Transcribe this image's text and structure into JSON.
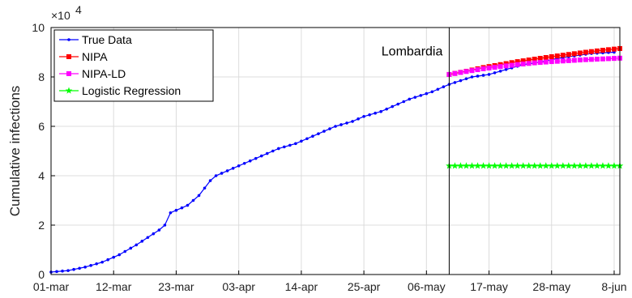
{
  "chart_data": {
    "type": "line",
    "ylabel": "Cumulative infections",
    "y_exponent_label": "×10",
    "y_exponent_power": "4",
    "ylim": [
      0,
      100000
    ],
    "y_ticks": [
      0,
      20000,
      40000,
      60000,
      80000,
      100000
    ],
    "y_tick_labels": [
      "0",
      "2",
      "4",
      "6",
      "8",
      "10"
    ],
    "x_start_date": "2020-03-01",
    "xlim_days": [
      0,
      100
    ],
    "x_ticks": [
      0,
      11,
      22,
      33,
      44,
      55,
      66,
      77,
      88,
      99
    ],
    "x_tick_labels": [
      "01-mar",
      "12-mar",
      "23-mar",
      "03-apr",
      "14-apr",
      "25-apr",
      "06-may",
      "17-may",
      "28-may",
      "8-jun"
    ],
    "grid": true,
    "legend_position": "top-left",
    "annotation": {
      "text": "Lombardia",
      "x_day": 70,
      "y": 86000
    },
    "vline_day": 70,
    "series": [
      {
        "name": "True Data",
        "color": "#0000ff",
        "marker": "dot",
        "points": [
          [
            0,
            1000
          ],
          [
            3,
            1600
          ],
          [
            6,
            3000
          ],
          [
            9,
            5000
          ],
          [
            12,
            8000
          ],
          [
            15,
            12000
          ],
          [
            17,
            15000
          ],
          [
            19,
            18000
          ],
          [
            20,
            20000
          ],
          [
            21,
            25000
          ],
          [
            23,
            27000
          ],
          [
            24,
            28000
          ],
          [
            26,
            32000
          ],
          [
            27,
            35000
          ],
          [
            28,
            38000
          ],
          [
            29,
            40000
          ],
          [
            31,
            42000
          ],
          [
            33,
            44000
          ],
          [
            35,
            46000
          ],
          [
            37,
            48000
          ],
          [
            40,
            51000
          ],
          [
            43,
            53000
          ],
          [
            46,
            56000
          ],
          [
            49,
            59000
          ],
          [
            50,
            60000
          ],
          [
            53,
            62000
          ],
          [
            55,
            64000
          ],
          [
            58,
            66000
          ],
          [
            61,
            69000
          ],
          [
            63,
            71000
          ],
          [
            67,
            74000
          ],
          [
            70,
            77000
          ],
          [
            74,
            80000
          ],
          [
            77,
            81000
          ],
          [
            80,
            83000
          ],
          [
            83,
            85000
          ],
          [
            86,
            86000
          ],
          [
            89,
            87500
          ],
          [
            92,
            88500
          ],
          [
            95,
            89500
          ],
          [
            99,
            90000
          ]
        ]
      },
      {
        "name": "NIPA",
        "color": "#ff0000",
        "marker": "square",
        "points": [
          [
            70,
            81000
          ],
          [
            73,
            82300
          ],
          [
            76,
            83800
          ],
          [
            79,
            85000
          ],
          [
            82,
            86200
          ],
          [
            85,
            87200
          ],
          [
            88,
            88200
          ],
          [
            91,
            89100
          ],
          [
            94,
            90000
          ],
          [
            97,
            90800
          ],
          [
            100,
            91500
          ]
        ]
      },
      {
        "name": "NIPA-LD",
        "color": "#ff00ff",
        "marker": "square",
        "points": [
          [
            70,
            81000
          ],
          [
            73,
            82200
          ],
          [
            76,
            83300
          ],
          [
            79,
            84200
          ],
          [
            82,
            85000
          ],
          [
            85,
            85700
          ],
          [
            88,
            86200
          ],
          [
            91,
            86600
          ],
          [
            94,
            87000
          ],
          [
            97,
            87300
          ],
          [
            100,
            87600
          ]
        ]
      },
      {
        "name": "Logistic Regression",
        "color": "#00ff00",
        "marker": "star",
        "points": [
          [
            70,
            44000
          ],
          [
            100,
            44000
          ]
        ]
      }
    ]
  }
}
